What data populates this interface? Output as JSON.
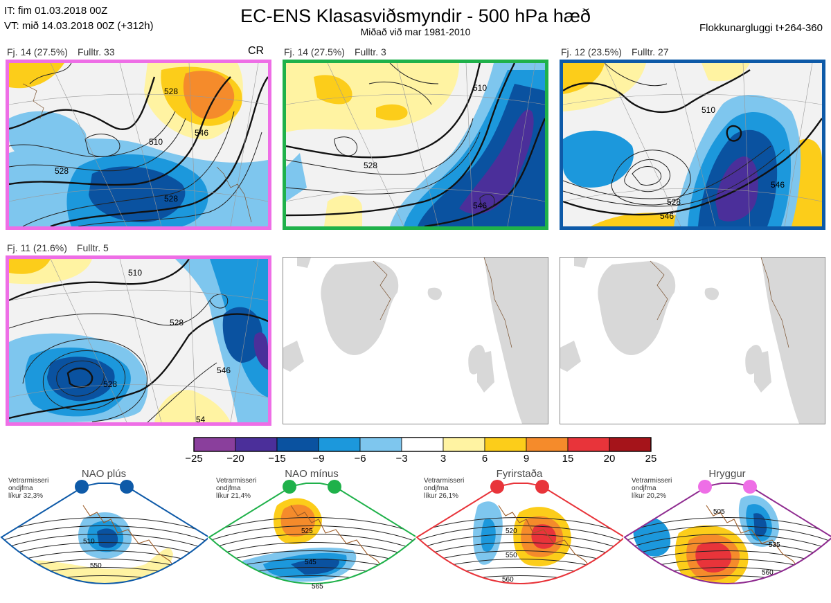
{
  "header": {
    "it_line": "IT: fim 01.03.2018 00Z",
    "vt_line": "VT: mið 14.03.2018 00Z  (+312h)",
    "title": "EC-ENS Klasasviðsmyndir - 500 hPa hæð",
    "subtitle": "Miðað við mar 1981-2010",
    "window": "Flokkunargluggi t+264-360"
  },
  "panels": [
    {
      "freq": "Fj. 14 (27.5%)",
      "rep": "Fulltr. 33",
      "tag": "CR",
      "border": "#ee6ee6"
    },
    {
      "freq": "Fj. 14 (27.5%)",
      "rep": "Fulltr. 3",
      "border": "#1fb14a"
    },
    {
      "freq": "Fj. 12 (23.5%)",
      "rep": "Fulltr. 27",
      "border": "#0e5aa8"
    },
    {
      "freq": "Fj. 11 (21.6%)",
      "rep": "Fulltr. 5",
      "border": "#ee6ee6"
    }
  ],
  "contour_labels": {
    "p1": [
      "510",
      "528",
      "546",
      "528",
      "528"
    ],
    "p2": [
      "510",
      "528",
      "546"
    ],
    "p3": [
      "510",
      "528",
      "546",
      "546"
    ],
    "p4": [
      "510",
      "528",
      "528",
      "546",
      "54"
    ]
  },
  "colorbar": {
    "ticks": [
      "−25",
      "−20",
      "−15",
      "−9",
      "−6",
      "−3",
      "3",
      "6",
      "9",
      "15",
      "20",
      "25"
    ],
    "colors": [
      "#8a3f9c",
      "#4b2f9a",
      "#0a52a0",
      "#1c98dc",
      "#7ec6ee",
      "#ffffff",
      "#fff3a2",
      "#fccd1a",
      "#f58b2b",
      "#e8343a",
      "#a5141a"
    ]
  },
  "regimes": [
    {
      "title": "NAO plús",
      "note": [
        "Vetrarmisseri",
        "ondjfma",
        "líkur 32,3%"
      ],
      "dot": "#0e5aa8",
      "edge": "#0e5aa8",
      "labels": [
        "510",
        "550"
      ]
    },
    {
      "title": "NAO mínus",
      "note": [
        "Vetrarmisseri",
        "ondjfma",
        "líkur 21,4%"
      ],
      "dot": "#1fb14a",
      "edge": "#1fb14a",
      "labels": [
        "525",
        "545",
        "565"
      ]
    },
    {
      "title": "Fyrirstaða",
      "note": [
        "Vetrarmisseri",
        "ondjfma",
        "líkur 26,1%"
      ],
      "dot": "#e8343a",
      "edge": "#e8343a",
      "labels": [
        "520",
        "550",
        "560"
      ]
    },
    {
      "title": "Hryggur",
      "note": [
        "Vetrarmisseri",
        "ondjfma",
        "líkur 20,2%"
      ],
      "dot": "#ee6ee6",
      "edge": "#8f2c90",
      "labels": [
        "505",
        "535",
        "560"
      ]
    }
  ]
}
